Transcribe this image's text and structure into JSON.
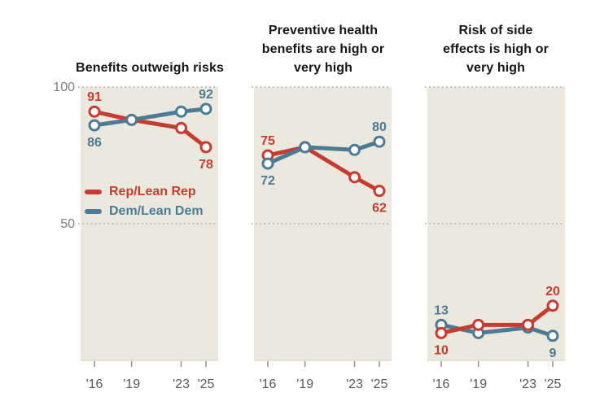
{
  "colors": {
    "rep": "#c63c31",
    "dem": "#4d7b94",
    "plot_bg": "#ebe9dd",
    "plot_bottom_edge": "#cfcdc0",
    "gridline": "#ababab",
    "tick": "#8f8f8f",
    "tick_label": "#595959",
    "y_axis_label": "#7c7c7c",
    "title": "#161616",
    "marker_fill": "#ffffff"
  },
  "legend": {
    "items": [
      {
        "label": "Rep/Lean Rep",
        "series": "rep"
      },
      {
        "label": "Dem/Lean Dem",
        "series": "dem"
      }
    ]
  },
  "x_axis": {
    "tick_labels": [
      "'16",
      "'19",
      "'23",
      "'25"
    ],
    "years": [
      2016,
      2019,
      2023,
      2025
    ]
  },
  "y_axis": {
    "tick_labels": [
      "100",
      "50"
    ],
    "tick_values": [
      100,
      50
    ]
  },
  "chart_data": [
    {
      "type": "line",
      "title": "Benefits outweigh risks",
      "title_lines": [
        "Benefits outweigh risks"
      ],
      "categories": [
        "'16",
        "'19",
        "'23",
        "'25"
      ],
      "ylim": [
        0,
        100
      ],
      "grid_values": [
        100,
        50
      ],
      "draw_order": [
        "rep",
        "dem"
      ],
      "series": [
        {
          "name": "Rep/Lean Rep",
          "key": "rep",
          "values": [
            91,
            88,
            85,
            78
          ],
          "first_label": "91",
          "last_label": "78"
        },
        {
          "name": "Dem/Lean Dem",
          "key": "dem",
          "values": [
            86,
            88,
            91,
            92
          ],
          "first_label": "86",
          "last_label": "92"
        }
      ]
    },
    {
      "type": "line",
      "title": "Preventive health benefits are high or very high",
      "title_lines": [
        "Preventive health",
        "benefits are high or",
        "very high"
      ],
      "categories": [
        "'16",
        "'19",
        "'23",
        "'25"
      ],
      "ylim": [
        0,
        100
      ],
      "grid_values": [
        100,
        50
      ],
      "draw_order": [
        "rep",
        "dem"
      ],
      "series": [
        {
          "name": "Rep/Lean Rep",
          "key": "rep",
          "values": [
            75,
            78,
            67,
            62
          ],
          "first_label": "75",
          "last_label": "62"
        },
        {
          "name": "Dem/Lean Dem",
          "key": "dem",
          "values": [
            72,
            78,
            77,
            80
          ],
          "first_label": "72",
          "last_label": "80"
        }
      ]
    },
    {
      "type": "line",
      "title": "Risk of side effects is high or very high",
      "title_lines": [
        "Risk of side",
        "effects is high or",
        "very high"
      ],
      "categories": [
        "'16",
        "'19",
        "'23",
        "'25"
      ],
      "ylim": [
        0,
        100
      ],
      "grid_values": [
        100,
        50
      ],
      "draw_order": [
        "dem",
        "rep"
      ],
      "series": [
        {
          "name": "Rep/Lean Rep",
          "key": "rep",
          "values": [
            10,
            13,
            13,
            20
          ],
          "first_label": "10",
          "last_label": "20"
        },
        {
          "name": "Dem/Lean Dem",
          "key": "dem",
          "values": [
            13,
            10,
            12,
            9
          ],
          "first_label": "13",
          "last_label": "9"
        }
      ]
    }
  ]
}
